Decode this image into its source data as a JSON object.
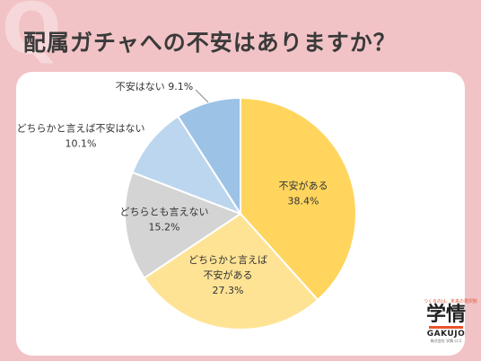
{
  "header": {
    "q_mark": "Q",
    "title": "配属ガチャへの不安はありますか？"
  },
  "logo": {
    "tagline": "つくるのは、未来の選択肢",
    "main": "学情",
    "en": "GAKUJO",
    "sub": "株式会社 学情 ロゴ"
  },
  "chart_data": {
    "type": "pie",
    "start_angle_deg": 0,
    "direction": "clockwise",
    "slices": [
      {
        "label_lines": [
          "不安がある",
          "38.4%"
        ],
        "value": 38.4,
        "color": "#ffd55e"
      },
      {
        "label_lines": [
          "どちらかと言えば",
          "不安がある",
          "27.3%"
        ],
        "value": 27.3,
        "color": "#ffe395"
      },
      {
        "label_lines": [
          "どちらとも言えない",
          "15.2%"
        ],
        "value": 15.2,
        "color": "#d4d4d4"
      },
      {
        "label_lines": [
          "どちらかと言えば不安はない",
          "10.1%"
        ],
        "value": 10.1,
        "color": "#bcd6ef"
      },
      {
        "label_lines": [
          "不安はない 9.1%"
        ],
        "value": 9.1,
        "color": "#9cc2e6"
      }
    ]
  }
}
